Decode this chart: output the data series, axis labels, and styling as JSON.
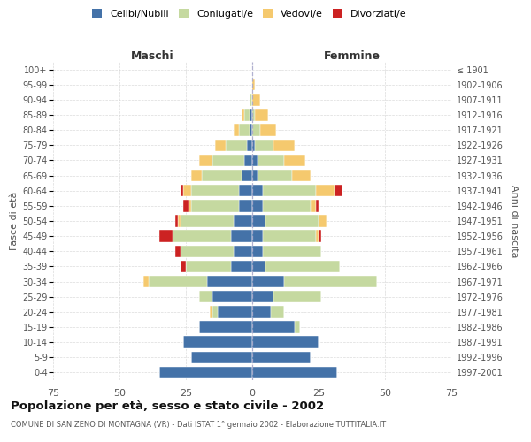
{
  "age_groups": [
    "0-4",
    "5-9",
    "10-14",
    "15-19",
    "20-24",
    "25-29",
    "30-34",
    "35-39",
    "40-44",
    "45-49",
    "50-54",
    "55-59",
    "60-64",
    "65-69",
    "70-74",
    "75-79",
    "80-84",
    "85-89",
    "90-94",
    "95-99",
    "100+"
  ],
  "birth_years": [
    "1997-2001",
    "1992-1996",
    "1987-1991",
    "1982-1986",
    "1977-1981",
    "1972-1976",
    "1967-1971",
    "1962-1966",
    "1957-1961",
    "1952-1956",
    "1947-1951",
    "1942-1946",
    "1937-1941",
    "1932-1936",
    "1927-1931",
    "1922-1926",
    "1917-1921",
    "1912-1916",
    "1907-1911",
    "1902-1906",
    "≤ 1901"
  ],
  "maschi": {
    "celibi": [
      35,
      23,
      26,
      20,
      13,
      15,
      17,
      8,
      7,
      8,
      7,
      5,
      5,
      4,
      3,
      2,
      1,
      1,
      0,
      0,
      0
    ],
    "coniugati": [
      0,
      0,
      0,
      0,
      2,
      5,
      22,
      17,
      20,
      22,
      20,
      18,
      18,
      15,
      12,
      8,
      4,
      2,
      1,
      0,
      0
    ],
    "vedovi": [
      0,
      0,
      0,
      0,
      1,
      0,
      2,
      0,
      0,
      0,
      1,
      1,
      3,
      4,
      5,
      4,
      2,
      1,
      0,
      0,
      0
    ],
    "divorziati": [
      0,
      0,
      0,
      0,
      0,
      0,
      0,
      2,
      2,
      5,
      1,
      2,
      1,
      0,
      0,
      0,
      0,
      0,
      0,
      0,
      0
    ]
  },
  "femmine": {
    "nubili": [
      32,
      22,
      25,
      16,
      7,
      8,
      12,
      5,
      4,
      4,
      5,
      4,
      4,
      2,
      2,
      1,
      0,
      0,
      0,
      0,
      0
    ],
    "coniugate": [
      0,
      0,
      0,
      2,
      5,
      18,
      35,
      28,
      22,
      20,
      20,
      18,
      20,
      13,
      10,
      7,
      3,
      1,
      0,
      0,
      0
    ],
    "vedove": [
      0,
      0,
      0,
      0,
      0,
      0,
      0,
      0,
      0,
      1,
      3,
      2,
      7,
      7,
      8,
      8,
      6,
      5,
      3,
      1,
      0
    ],
    "divorziate": [
      0,
      0,
      0,
      0,
      0,
      0,
      0,
      0,
      0,
      1,
      0,
      1,
      3,
      0,
      0,
      0,
      0,
      0,
      0,
      0,
      0
    ]
  },
  "colors": {
    "celibi": "#4472a8",
    "coniugati": "#c5d9a0",
    "vedovi": "#f5c96e",
    "divorziati": "#cc2222"
  },
  "xlim": 75,
  "title": "Popolazione per età, sesso e stato civile - 2002",
  "subtitle": "COMUNE DI SAN ZENO DI MONTAGNA (VR) - Dati ISTAT 1° gennaio 2002 - Elaborazione TUTTITALIA.IT",
  "ylabel_left": "Fasce di età",
  "ylabel_right": "Anni di nascita",
  "xlabel_maschi": "Maschi",
  "xlabel_femmine": "Femmine",
  "legend_labels": [
    "Celibi/Nubili",
    "Coniugati/e",
    "Vedovi/e",
    "Divorziati/e"
  ],
  "bg_color": "#ffffff",
  "grid_color": "#cccccc"
}
